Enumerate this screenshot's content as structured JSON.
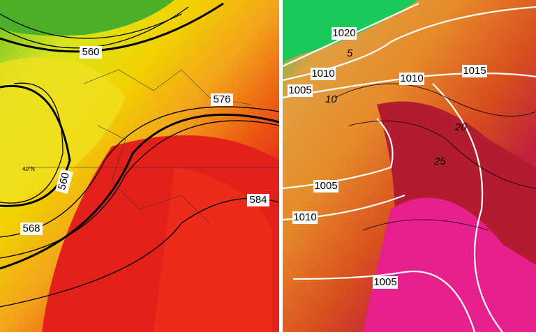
{
  "left_panel": {
    "contour_labels": [
      "560",
      "576",
      "584",
      "568",
      "560"
    ],
    "latitude_label": "40°N"
  },
  "right_panel": {
    "isobar_labels": [
      "1020",
      "1010",
      "1005",
      "1010",
      "1015",
      "1005",
      "1010",
      "1005"
    ],
    "isotherm_labels": [
      "5",
      "10",
      "20",
      "25"
    ]
  }
}
